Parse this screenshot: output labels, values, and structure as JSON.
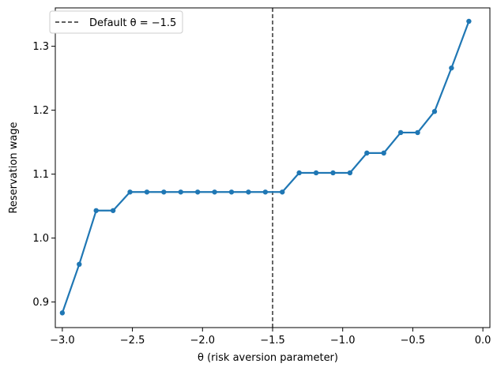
{
  "chart_data": {
    "type": "line",
    "xlabel": "θ (risk aversion parameter)",
    "ylabel": "Reservation wage",
    "xlim": [
      -3.05,
      0.05
    ],
    "ylim": [
      0.86,
      1.36
    ],
    "xticks": [
      -3.0,
      -2.5,
      -2.0,
      -1.5,
      -1.0,
      -0.5,
      0.0
    ],
    "xtick_labels": [
      "−3.0",
      "−2.5",
      "−2.0",
      "−1.5",
      "−1.0",
      "−0.5",
      "0.0"
    ],
    "yticks": [
      0.9,
      1.0,
      1.1,
      1.2,
      1.3
    ],
    "ytick_labels": [
      "0.9",
      "1.0",
      "1.1",
      "1.2",
      "1.3"
    ],
    "grid": false,
    "legend_position": "top-left",
    "line_color": "#1f77b4",
    "vline": {
      "x": -1.5,
      "label": "Default θ = −1.5",
      "color": "#000000",
      "style": "dashed"
    },
    "series": [
      {
        "x": [
          -3.0,
          -2.8793,
          -2.7586,
          -2.6379,
          -2.5172,
          -2.3966,
          -2.2759,
          -2.1552,
          -2.0345,
          -1.9138,
          -1.7931,
          -1.6724,
          -1.5517,
          -1.431,
          -1.3103,
          -1.1897,
          -1.069,
          -0.9483,
          -0.8276,
          -0.7069,
          -0.5862,
          -0.4655,
          -0.3448,
          -0.2241,
          -0.1
        ],
        "y": [
          0.883,
          0.959,
          1.043,
          1.043,
          1.072,
          1.072,
          1.072,
          1.072,
          1.072,
          1.072,
          1.072,
          1.072,
          1.072,
          1.072,
          1.102,
          1.102,
          1.102,
          1.102,
          1.133,
          1.133,
          1.165,
          1.165,
          1.198,
          1.266,
          1.339
        ]
      }
    ]
  }
}
